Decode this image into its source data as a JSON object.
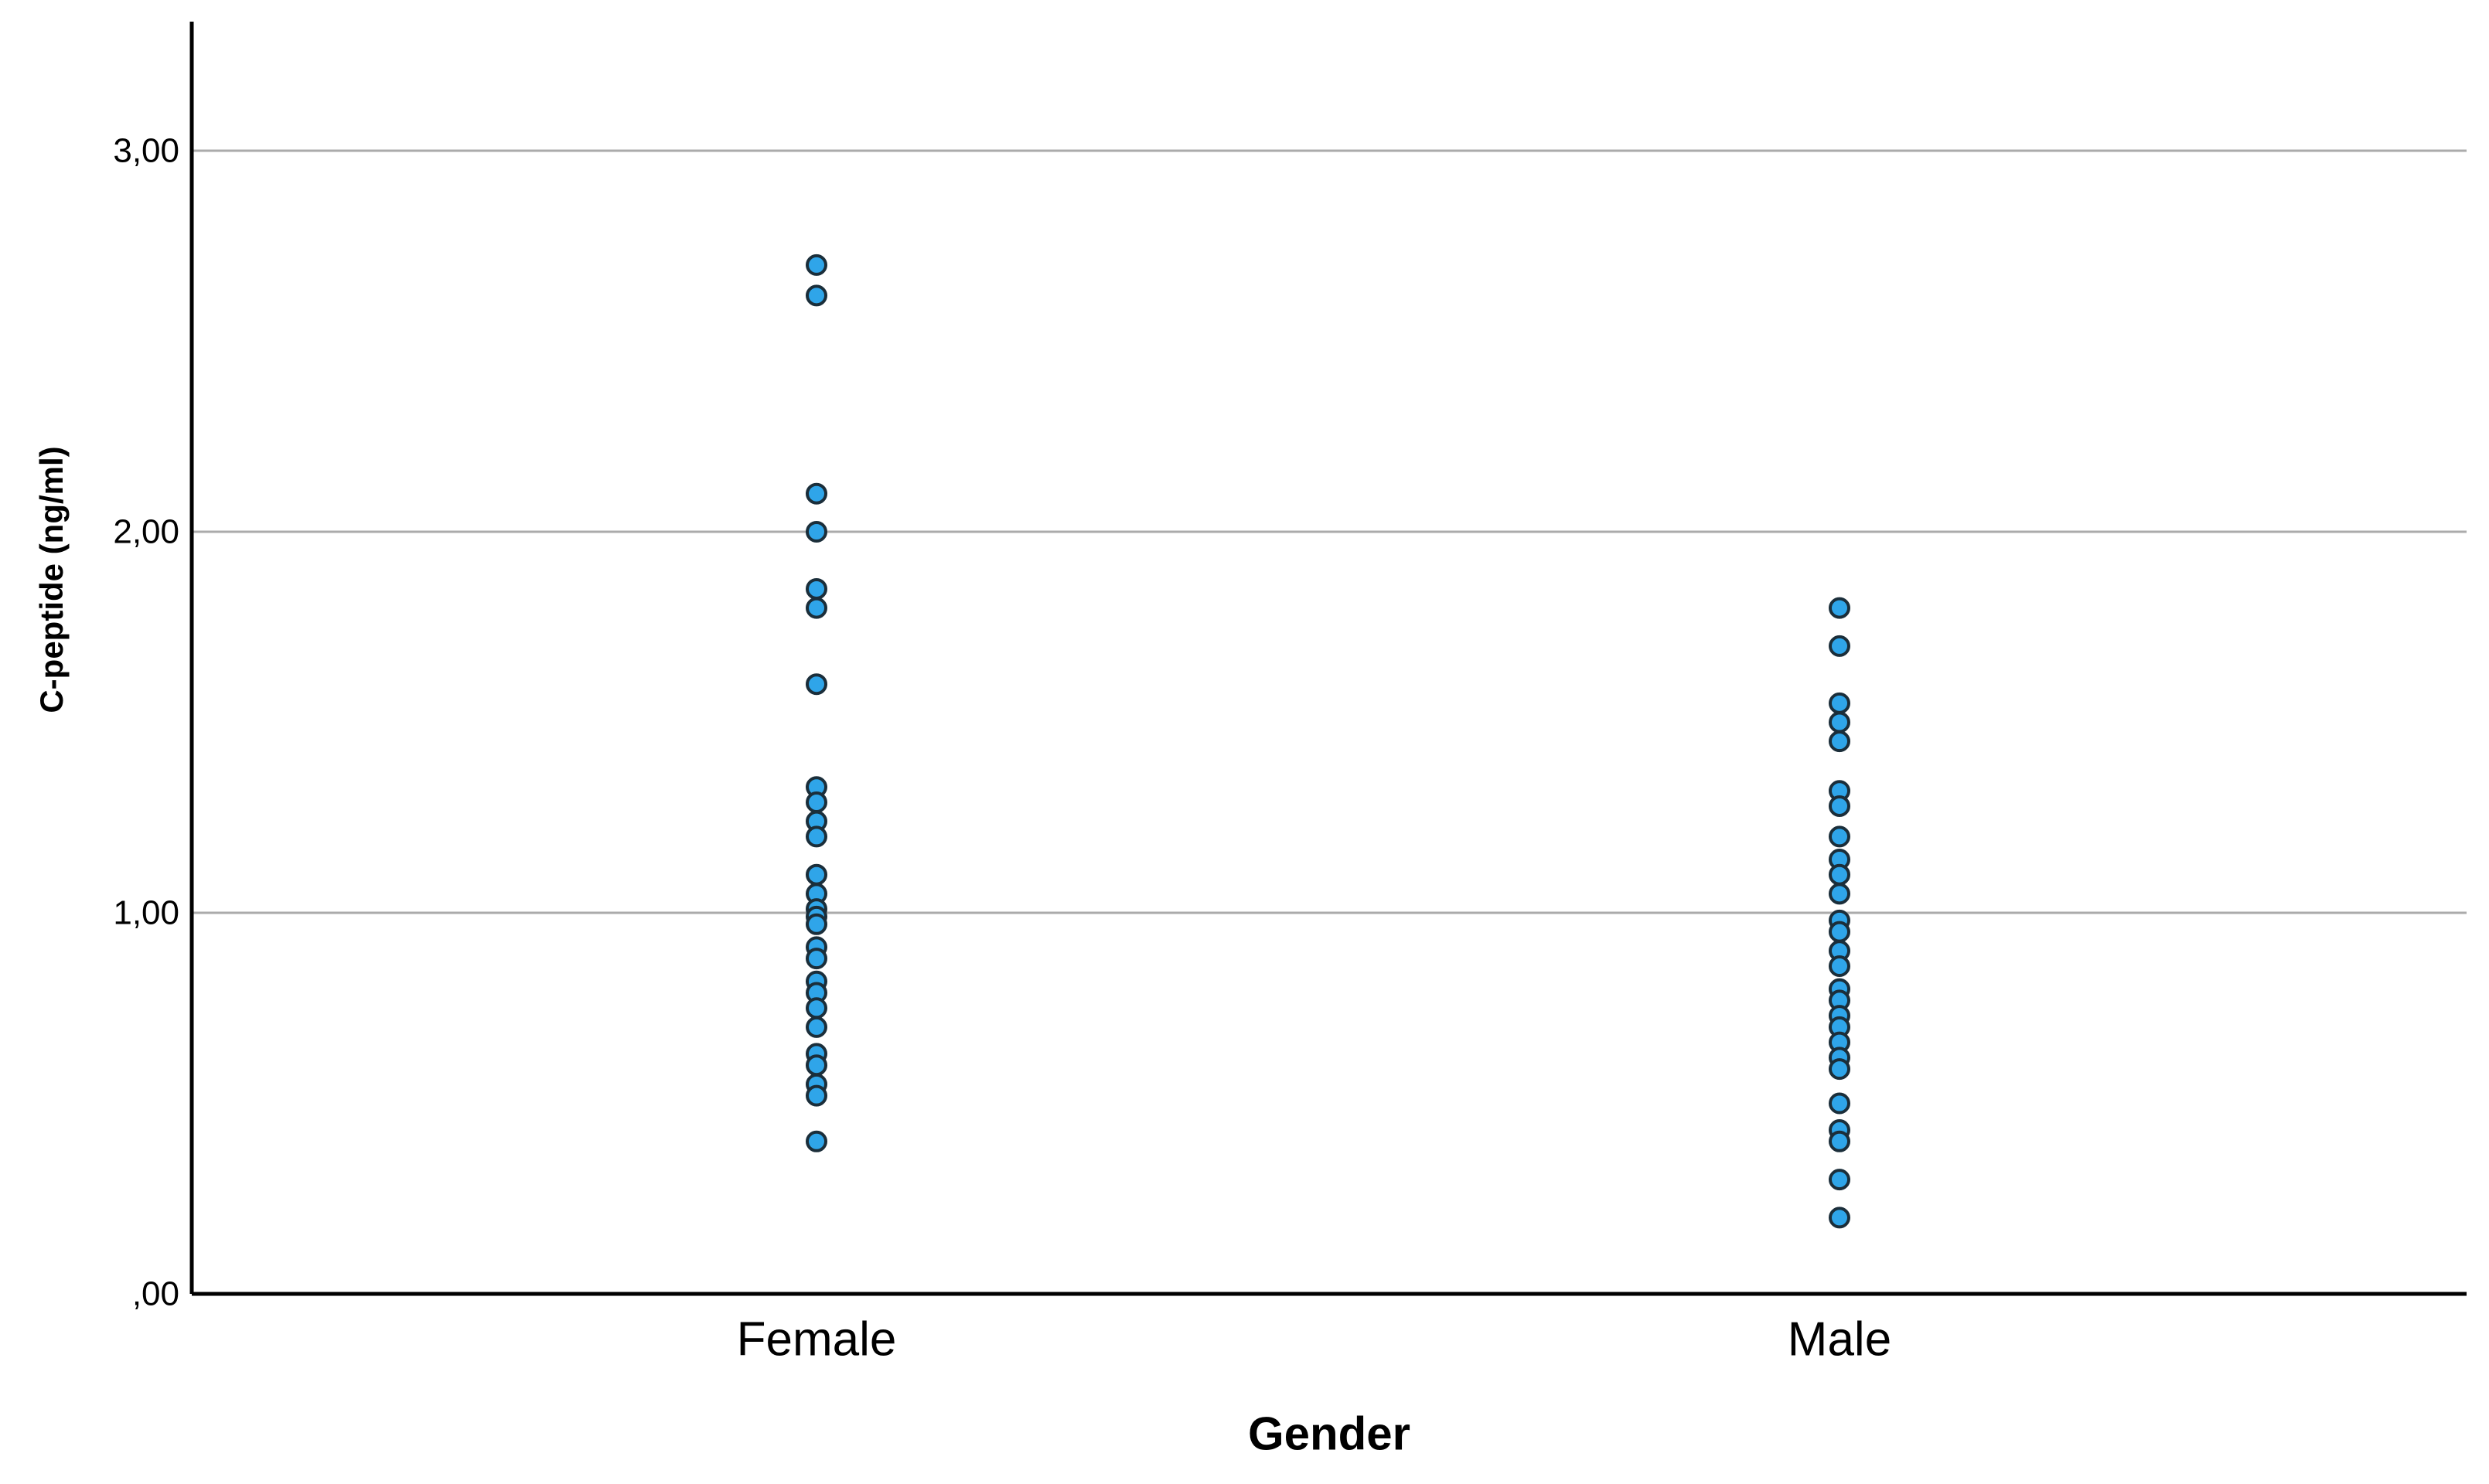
{
  "chart_data": {
    "type": "scatter",
    "subtype": "strip-plot",
    "title": "",
    "xlabel": "Gender",
    "ylabel": "C-peptide (ng/ml)",
    "categories": [
      "Female",
      "Male"
    ],
    "series": [
      {
        "name": "Female",
        "values": [
          2.7,
          2.62,
          2.1,
          2.0,
          1.85,
          1.8,
          1.6,
          1.33,
          1.29,
          1.24,
          1.2,
          1.1,
          1.05,
          1.01,
          0.99,
          0.97,
          0.91,
          0.88,
          0.82,
          0.79,
          0.75,
          0.7,
          0.63,
          0.6,
          0.55,
          0.52,
          0.4
        ]
      },
      {
        "name": "Male",
        "values": [
          1.8,
          1.7,
          1.55,
          1.5,
          1.45,
          1.32,
          1.28,
          1.2,
          1.14,
          1.1,
          1.05,
          0.98,
          0.95,
          0.9,
          0.86,
          0.8,
          0.77,
          0.73,
          0.7,
          0.66,
          0.62,
          0.59,
          0.5,
          0.43,
          0.4,
          0.3,
          0.2
        ]
      }
    ],
    "y_ticks": [
      {
        "label": ",00",
        "value": 0
      },
      {
        "label": "1,00",
        "value": 1
      },
      {
        "label": "2,00",
        "value": 2
      },
      {
        "label": "3,00",
        "value": 3
      }
    ],
    "ylim": [
      0,
      3.34
    ],
    "grid": "horizontal-only",
    "legend": "none",
    "decimal_separator": "comma",
    "point_style": {
      "fill": "#2FA5E9",
      "stroke": "#1B2E3A",
      "shape": "circle"
    },
    "colors": {
      "gridline": "#ABABAB",
      "axis": "#000000",
      "background": "#FFFFFF",
      "text": "#000000"
    }
  }
}
